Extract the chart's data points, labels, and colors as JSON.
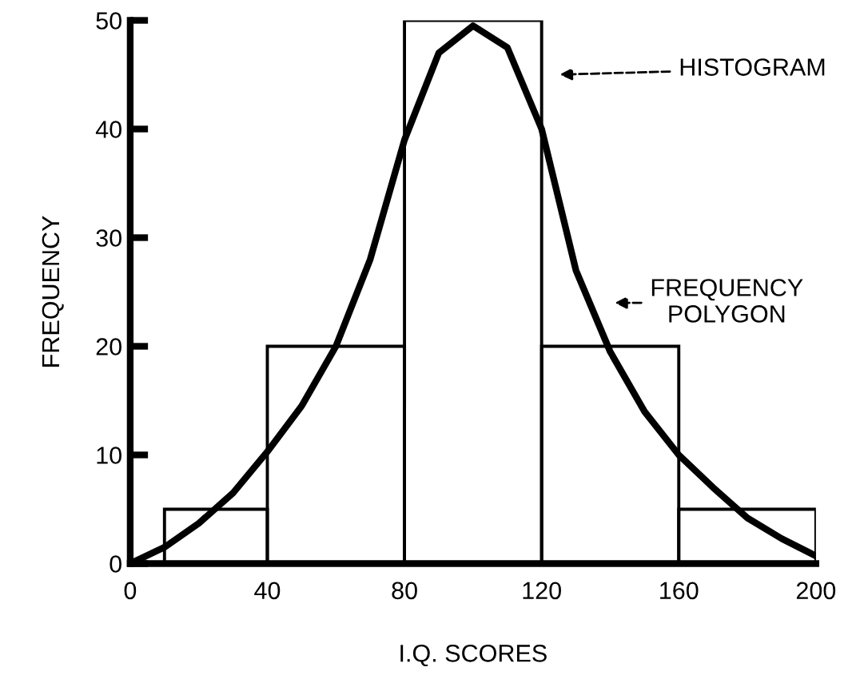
{
  "chart_data": {
    "type": "histogram",
    "xlabel": "I.Q. SCORES",
    "ylabel": "FREQUENCY",
    "bins": [
      10,
      40,
      80,
      120,
      160,
      200
    ],
    "values": [
      5,
      20,
      50,
      20,
      5
    ],
    "color": "#000000",
    "series": [
      {
        "type": "line",
        "color": "#000000",
        "x": [
          0,
          10,
          20,
          30,
          40,
          50,
          60,
          70,
          80,
          90,
          100,
          110,
          120,
          130,
          140,
          150,
          160,
          170,
          180,
          190,
          200
        ],
        "values": [
          0,
          1.5,
          3.7,
          6.5,
          10.3,
          14.5,
          20,
          28,
          39,
          47,
          49.5,
          47.5,
          40,
          27,
          19.5,
          14,
          10,
          7,
          4.2,
          2.3,
          0.7
        ]
      }
    ],
    "annotations": [
      "HISTOGRAM",
      "FREQUENCY\nPOLYGON"
    ],
    "xlim": [
      0,
      200
    ],
    "ylim": [
      0,
      50
    ],
    "xticks": [
      0,
      40,
      80,
      120,
      160,
      200
    ],
    "yticks": [
      0,
      10,
      20,
      30,
      40,
      50
    ],
    "grid": false,
    "legend": false
  }
}
